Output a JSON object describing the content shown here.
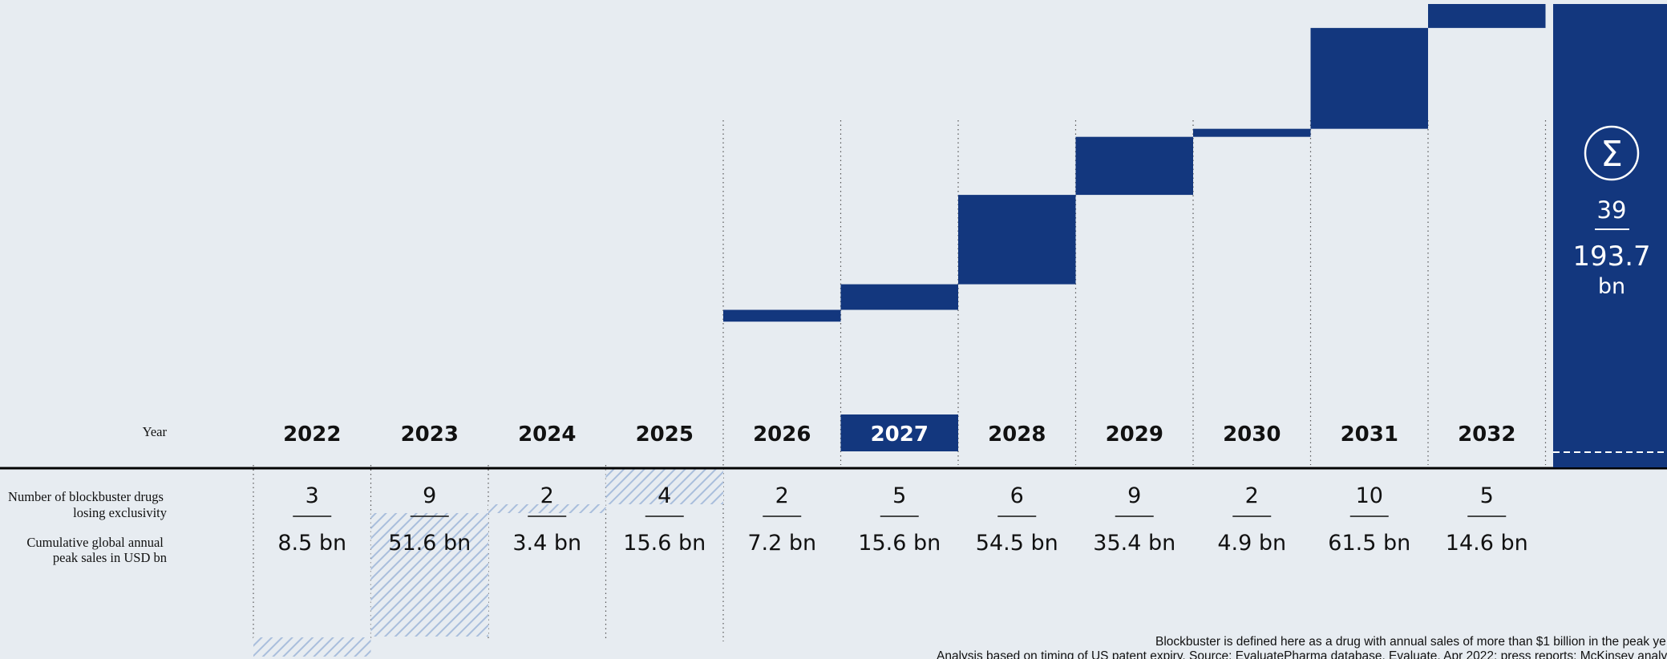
{
  "chart_data": {
    "type": "bar",
    "subtype": "waterfall",
    "row_labels": {
      "year": "Year",
      "count": [
        "Number of blockbuster drugs",
        "losing exclusivity"
      ],
      "sales": [
        "Cumulative global annual",
        "peak sales in USD bn"
      ]
    },
    "categories": [
      "2022",
      "2023",
      "2024",
      "2025",
      "2026",
      "2027",
      "2028",
      "2029",
      "2030",
      "2031",
      "2032"
    ],
    "series": [
      {
        "values": [
          8.5,
          51.6,
          3.4,
          15.6,
          7.2,
          15.6,
          54.5,
          35.4,
          4.9,
          61.5,
          14.6
        ]
      }
    ],
    "counts": [
      3,
      9,
      2,
      4,
      2,
      5,
      6,
      9,
      2,
      10,
      5
    ],
    "count_labels": [
      "3",
      "9",
      "2",
      "4",
      "2",
      "5",
      "6",
      "9",
      "2",
      "10",
      "5"
    ],
    "sales_labels": [
      "8.5 bn",
      "51.6 bn",
      "3.4 bn",
      "15.6 bn",
      "7.2 bn",
      "15.6 bn",
      "54.5 bn",
      "35.4 bn",
      "4.9 bn",
      "61.5 bn",
      "14.6 bn"
    ],
    "highlight_year": "2027",
    "hatched_years": [
      "2022",
      "2023",
      "2024",
      "2025"
    ],
    "total": {
      "symbol": "Σ",
      "count": "39",
      "value": "193.7",
      "unit": "bn"
    },
    "colors": {
      "bar": "#13377e",
      "hatch": "#a9bedc",
      "background": "#e7ecf1",
      "text": "#111111"
    }
  },
  "footnotes": [
    "Blockbuster is defined here as a drug with annual sales of more than $1 billion in the peak ye",
    "Analysis based on timing of US patent expiry. Source: EvaluatePharma database, Evaluate, Apr 2022; press reports; McKinsey analy"
  ]
}
